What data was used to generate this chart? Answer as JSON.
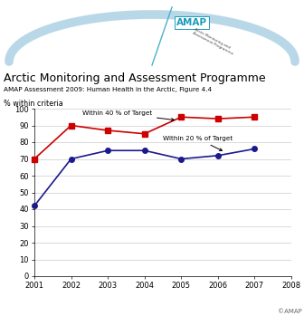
{
  "title": "Arctic Monitoring and Assessment Programme",
  "subtitle": "AMAP Assessment 2009: Human Health in the Arctic, Figure 4.4",
  "ylabel": "% within criteria",
  "copyright": "©AMAP",
  "xlim": [
    2001,
    2008
  ],
  "ylim": [
    0,
    100
  ],
  "xticks": [
    2001,
    2002,
    2003,
    2004,
    2005,
    2006,
    2007,
    2008
  ],
  "yticks": [
    0,
    10,
    20,
    30,
    40,
    50,
    60,
    70,
    80,
    90,
    100
  ],
  "red_series": {
    "label": "Within 40 % of Target",
    "x": [
      2001,
      2002,
      2003,
      2004,
      2005,
      2006,
      2007
    ],
    "y": [
      70,
      90,
      87,
      85,
      95,
      94,
      95
    ],
    "color": "#cc0000",
    "marker": "s",
    "markersize": 4,
    "linewidth": 1.2
  },
  "blue_series": {
    "label": "Within 20 % of Target",
    "x": [
      2001,
      2002,
      2003,
      2004,
      2005,
      2006,
      2007
    ],
    "y": [
      42,
      70,
      75,
      75,
      70,
      72,
      76
    ],
    "color": "#1a1a8c",
    "marker": "o",
    "markersize": 4,
    "linewidth": 1.2
  },
  "bg_color": "#ffffff",
  "grid_color": "#cccccc",
  "amap_arc_color": "#b8d8e8",
  "amap_text_color": "#1a9abb",
  "amap_line_color": "#4ab0cc"
}
